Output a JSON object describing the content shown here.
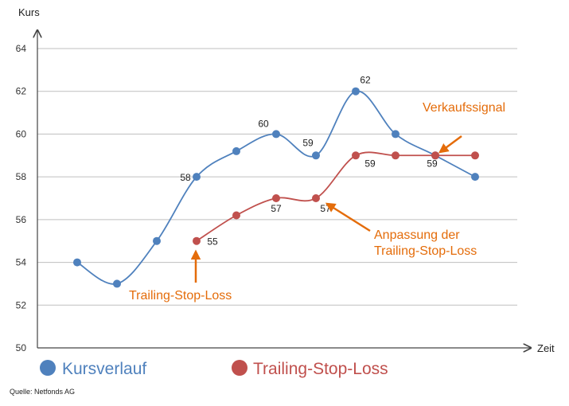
{
  "chart_data": {
    "type": "line",
    "ylabel": "Kurs",
    "xlabel": "Zeit",
    "ylim": [
      50,
      64
    ],
    "yticks": [
      50,
      52,
      54,
      56,
      58,
      60,
      62,
      64
    ],
    "grid": true,
    "legend_position": "bottom",
    "series": [
      {
        "name": "Kursverlauf",
        "color": "#4f81bd",
        "x": [
          1,
          2,
          3,
          4,
          5,
          6,
          7,
          8,
          9,
          10,
          11
        ],
        "values": [
          54,
          53,
          55,
          58,
          59.2,
          60,
          59,
          62,
          60,
          59,
          58
        ],
        "labels": [
          {
            "index": 3,
            "text": "58"
          },
          {
            "index": 5,
            "text": "60"
          },
          {
            "index": 6,
            "text": "59"
          },
          {
            "index": 7,
            "text": "62"
          },
          {
            "index": 9,
            "text": "59"
          }
        ]
      },
      {
        "name": "Trailing-Stop-Loss",
        "color": "#c0504d",
        "x": [
          4,
          5,
          6,
          7,
          8,
          9,
          10,
          11
        ],
        "values": [
          55,
          56.2,
          57,
          57,
          59,
          59,
          59,
          59
        ],
        "labels": [
          {
            "index": 0,
            "text": "55"
          },
          {
            "index": 2,
            "text": "57"
          },
          {
            "index": 3,
            "text": "57"
          },
          {
            "index": 4,
            "text": "59"
          }
        ]
      }
    ],
    "annotations": [
      {
        "text": [
          "Verkaufssignal"
        ],
        "color": "#e46c0a"
      },
      {
        "text": [
          "Anpassung der",
          "Trailing-Stop-Loss"
        ],
        "color": "#e46c0a"
      },
      {
        "text": [
          "Trailing-Stop-Loss"
        ],
        "color": "#e46c0a"
      }
    ]
  },
  "source": "Quelle: Netfonds AG"
}
